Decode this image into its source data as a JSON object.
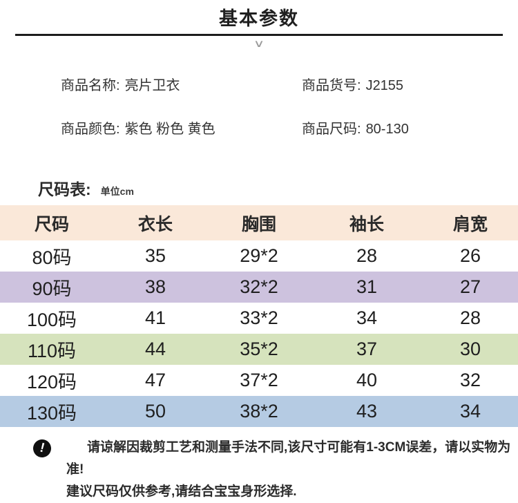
{
  "header": {
    "title": "基本参数",
    "chevron_icon": "∨"
  },
  "product_info": {
    "items": [
      {
        "label": "商品名称:",
        "value": "亮片卫衣"
      },
      {
        "label": "商品货号:",
        "value": "J2155"
      },
      {
        "label": "商品颜色:",
        "value": "紫色 粉色 黄色"
      },
      {
        "label": "商品尺码:",
        "value": "80-130"
      }
    ]
  },
  "size_chart": {
    "label": "尺码表:",
    "unit": "单位cm",
    "header_bg": "#fae8d9",
    "columns": [
      "尺码",
      "衣长",
      "胸围",
      "袖长",
      "肩宽"
    ],
    "rows": [
      {
        "size": "80码",
        "length": "35",
        "chest": "29*2",
        "sleeve": "28",
        "shoulder": "26",
        "bg": "#ffffff"
      },
      {
        "size": "90码",
        "length": "38",
        "chest": "32*2",
        "sleeve": "31",
        "shoulder": "27",
        "bg": "#cdc2de"
      },
      {
        "size": "100码",
        "length": "41",
        "chest": "33*2",
        "sleeve": "34",
        "shoulder": "28",
        "bg": "#ffffff"
      },
      {
        "size": "110码",
        "length": "44",
        "chest": "35*2",
        "sleeve": "37",
        "shoulder": "30",
        "bg": "#d6e3bd"
      },
      {
        "size": "120码",
        "length": "47",
        "chest": "37*2",
        "sleeve": "40",
        "shoulder": "32",
        "bg": "#ffffff"
      },
      {
        "size": "130码",
        "length": "50",
        "chest": "38*2",
        "sleeve": "43",
        "shoulder": "34",
        "bg": "#b5cbe3"
      }
    ]
  },
  "note": {
    "icon": "exclamation",
    "line1": "请谅解因裁剪工艺和测量手法不同,该尺寸可能有1-3CM误差，请以实物为准!",
    "line2": "建议尺码仅供参考,请结合宝宝身形选择."
  },
  "colors": {
    "header_row": "#fae8d9",
    "purple_row": "#cdc2de",
    "green_row": "#d6e3bd",
    "blue_row": "#b5cbe3",
    "text": "#2b2b2b"
  }
}
